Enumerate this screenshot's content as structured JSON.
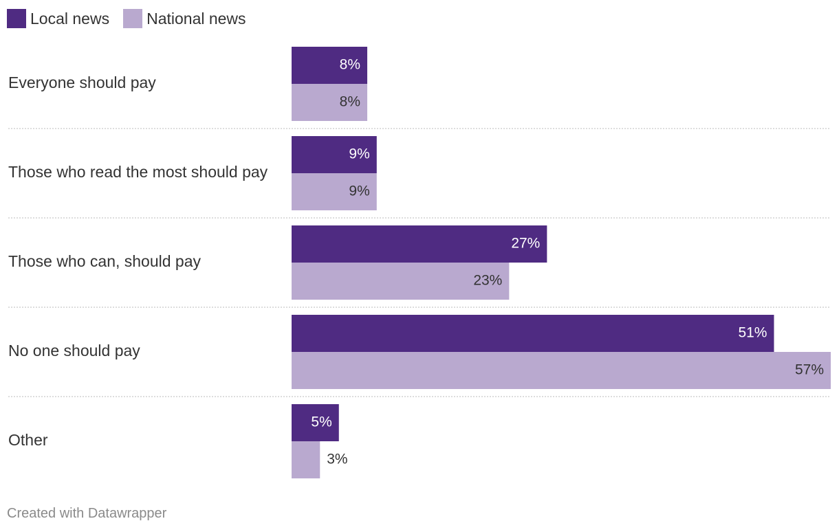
{
  "chart_data": {
    "type": "bar",
    "orientation": "horizontal",
    "categories": [
      "Everyone should pay",
      "Those who read the most should pay",
      "Those who can, should pay",
      "No one should pay",
      "Other"
    ],
    "series": [
      {
        "name": "Local news",
        "color": "#4f2b82",
        "values": [
          8,
          9,
          27,
          51,
          5
        ]
      },
      {
        "name": "National news",
        "color": "#b9a9cf",
        "values": [
          8,
          9,
          23,
          57,
          3
        ]
      }
    ],
    "value_suffix": "%",
    "xlim": [
      0,
      57
    ],
    "grid": false,
    "legend_position": "top-left"
  },
  "footer": {
    "credit": "Created with Datawrapper"
  }
}
